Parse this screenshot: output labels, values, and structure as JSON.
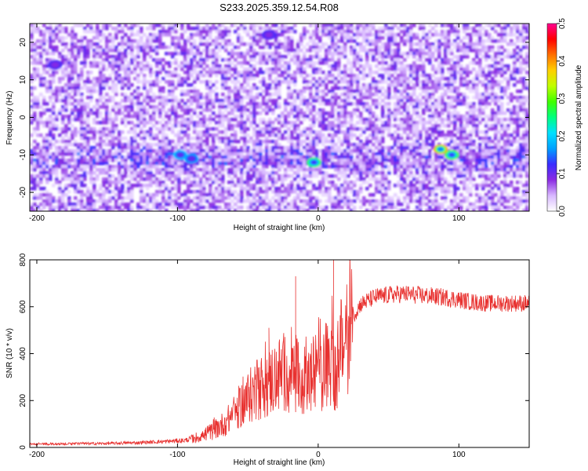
{
  "title": "S233.2025.359.12.54.R08",
  "colors": {
    "snr_line": "#e8312f",
    "colormap": [
      "#ffffff",
      "#d8b8ff",
      "#8a2be2",
      "#3a2cff",
      "#00a0ff",
      "#00e0ff",
      "#00ff80",
      "#40ff00",
      "#c0ff00",
      "#ffd000",
      "#ff7000",
      "#ff0000",
      "#ff0090"
    ]
  },
  "chart_data": [
    {
      "type": "heatmap",
      "title": "S233.2025.359.12.54.R08",
      "xlabel": "Height of straight line (km)",
      "ylabel": "Frequency (Hz)",
      "xlim": [
        -205,
        150
      ],
      "ylim": [
        -25,
        25
      ],
      "xticks": [
        -200,
        -100,
        0,
        100
      ],
      "yticks": [
        -20,
        -10,
        0,
        10,
        20
      ],
      "colorbar": {
        "label": "Normalized spectral amplitude",
        "range": [
          0.0,
          0.5
        ],
        "ticks": [
          "0.0",
          "0.1",
          "0.2",
          "0.3",
          "0.4",
          "0.5"
        ]
      },
      "signal_band": {
        "frequency_center": -11,
        "frequency_width": 6
      },
      "hot_spots": [
        {
          "x": -98,
          "y": -10,
          "value": 0.2
        },
        {
          "x": -90,
          "y": -11,
          "value": 0.18
        },
        {
          "x": -3,
          "y": -12,
          "value": 0.28
        },
        {
          "x": 87,
          "y": -8.5,
          "value": 0.4
        },
        {
          "x": 95,
          "y": -10,
          "value": 0.3
        },
        {
          "x": -187,
          "y": 14,
          "value": 0.12
        },
        {
          "x": -35,
          "y": 22,
          "value": 0.12
        }
      ]
    },
    {
      "type": "line",
      "xlabel": "Height of straight line (km)",
      "ylabel": "SNR (10 * v/v)",
      "xlim": [
        -205,
        150
      ],
      "ylim": [
        0,
        800
      ],
      "xticks": [
        -200,
        -100,
        0,
        100
      ],
      "yticks": [
        0,
        200,
        400,
        600,
        800
      ],
      "series": [
        {
          "x": [
            -205,
            -190,
            -170,
            -150,
            -130,
            -110,
            -95,
            -85,
            -75,
            -65,
            -55,
            -45,
            -35,
            -25,
            -15,
            -10,
            -5,
            0,
            5,
            10,
            12,
            15,
            20,
            25,
            30,
            40,
            50,
            60,
            70,
            80,
            90,
            100,
            110,
            120,
            130,
            140,
            150
          ],
          "values": [
            15,
            15,
            16,
            17,
            20,
            25,
            30,
            45,
            70,
            110,
            180,
            240,
            280,
            320,
            300,
            280,
            300,
            330,
            350,
            380,
            300,
            380,
            480,
            560,
            610,
            640,
            650,
            655,
            650,
            645,
            640,
            630,
            620,
            615,
            615,
            615,
            615
          ],
          "spikes": [
            {
              "x": -35,
              "value": 510
            },
            {
              "x": -16,
              "value": 730
            },
            {
              "x": 11,
              "value": 810
            },
            {
              "x": 12,
              "value": 230
            }
          ]
        }
      ]
    }
  ]
}
